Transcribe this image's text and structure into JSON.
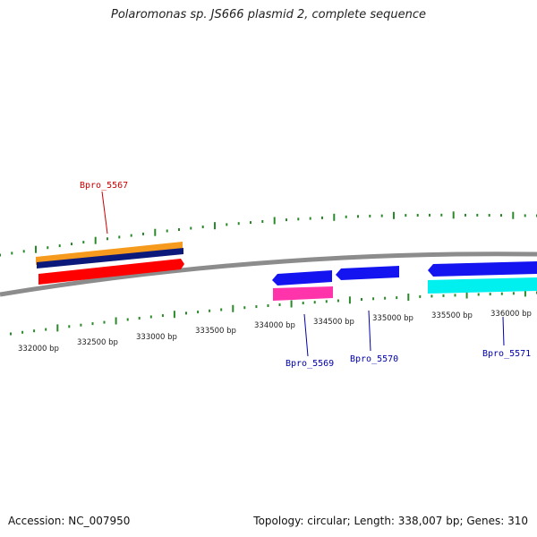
{
  "title": "Polaromonas sp. JS666 plasmid 2, complete sequence",
  "footer": {
    "accession": "Accession: NC_007950",
    "summary": "Topology: circular; Length: 338,007 bp; Genes: 310"
  },
  "colors": {
    "backbone": "#8c8c8c",
    "tick": "#2a8a2a",
    "forward_label": "#cc0000",
    "reverse_label": "#0000aa",
    "orange": "#f59a1c",
    "navy": "#0b1a7a",
    "red": "#ff0000",
    "blue": "#1414f0",
    "magenta": "#ff33aa",
    "cyan": "#00f0f0"
  },
  "scale": {
    "labels": [
      "332000 bp",
      "332500 bp",
      "333000 bp",
      "333500 bp",
      "334000 bp",
      "334500 bp",
      "335000 bp",
      "335500 bp",
      "336000 bp"
    ]
  },
  "genes": [
    {
      "name": "Bpro_5567",
      "strand": "forward"
    },
    {
      "name": "Bpro_5569",
      "strand": "reverse"
    },
    {
      "name": "Bpro_5570",
      "strand": "reverse"
    },
    {
      "name": "Bpro_5571",
      "strand": "reverse"
    }
  ]
}
